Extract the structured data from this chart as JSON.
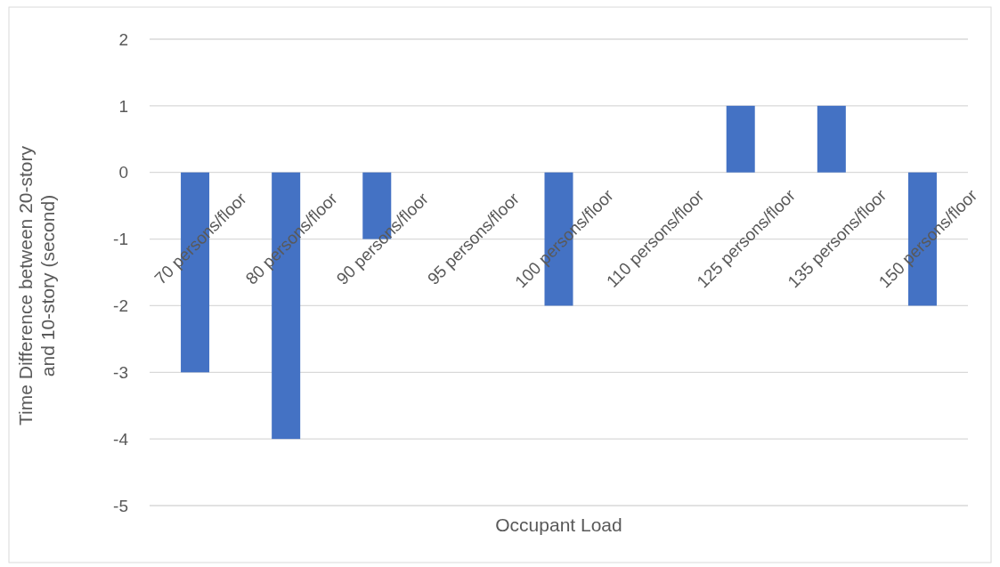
{
  "chart_data": {
    "type": "bar",
    "xlabel": "Occupant Load",
    "ylabel": "Time Difference between 20-story and 10-story (second)",
    "categories": [
      "70 persons/floor",
      "80 persons/floor",
      "90 persons/floor",
      "95 persons/floor",
      "100 persons/floor",
      "110 persons/floor",
      "125 persons/floor",
      "135 persons/floor",
      "150 persons/floor"
    ],
    "values": [
      -3,
      -4,
      -1,
      0,
      -2,
      0,
      1,
      1,
      -2
    ],
    "color": "#4472c4",
    "ylim": [
      -5,
      2
    ],
    "yticks": [
      -5,
      -4,
      -3,
      -2,
      -1,
      0,
      1,
      2
    ],
    "grid": "y"
  }
}
